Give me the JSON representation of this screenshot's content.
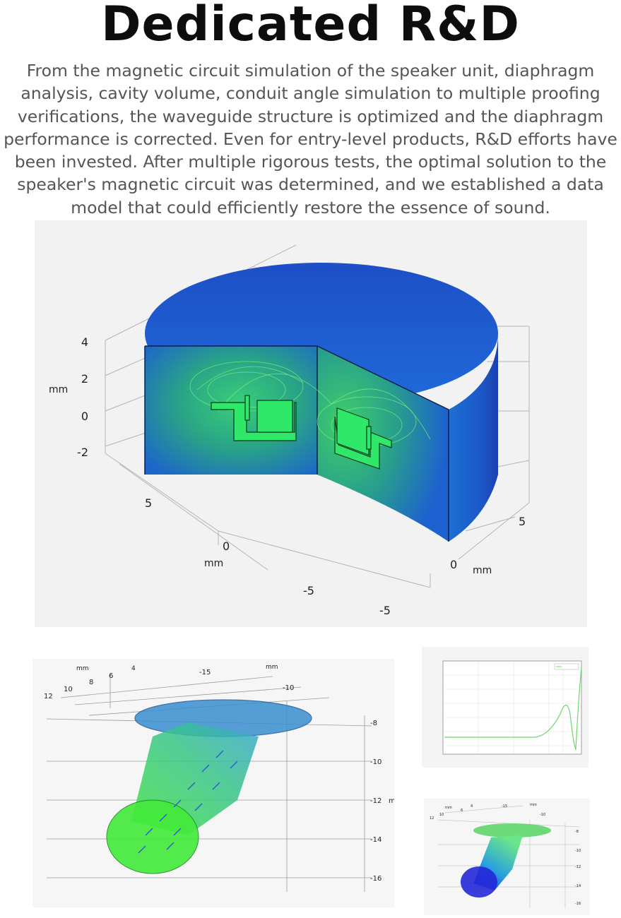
{
  "header": {
    "title": "Dedicated R&D",
    "paragraph": "From the magnetic circuit simulation of the speaker unit, diaphragm analysis, cavity volume, conduit angle simulation to multiple proofing verifications, the waveguide structure is optimized and the diaphragm performance is corrected. Even for entry-level products, R&D efforts have been invested. After multiple rigorous tests, the optimal solution to the speaker's magnetic circuit was determined, and we established a data model that could efficiently restore the essence of sound."
  },
  "main_sim": {
    "z_ticks": [
      "4",
      "2",
      "0",
      "-2"
    ],
    "z_unit": "mm",
    "x_ticks": [
      "5",
      "0",
      "-5"
    ],
    "x_unit": "mm",
    "y_ticks": [
      "5",
      "0",
      "-5"
    ],
    "y_unit": "mm"
  },
  "waveguide_sim": {
    "unit_left": "mm",
    "unit_right": "mm",
    "top_ticks": [
      "4",
      "6",
      "8",
      "10",
      "12"
    ],
    "top_ticks_right": [
      "-15",
      "-10"
    ],
    "side_ticks": [
      "-8",
      "-10",
      "-12",
      "-14",
      "-16"
    ],
    "side_unit_fragment": "m"
  },
  "mini_sim": {
    "unit_left": "mm",
    "unit_right": "mm",
    "top_ticks": [
      "4",
      "6",
      "10",
      "12"
    ],
    "top_ticks_right": [
      "-15",
      "-10"
    ],
    "side_ticks": [
      "-8",
      "-10",
      "-12",
      "-14",
      "-16"
    ]
  },
  "colors": {
    "title": "#0d0d0d",
    "body_text": "#555555",
    "panel_bg": "#f3f3f3",
    "cylinder_blue": "#1a5cd6",
    "field_green": "#3ddc3a"
  }
}
